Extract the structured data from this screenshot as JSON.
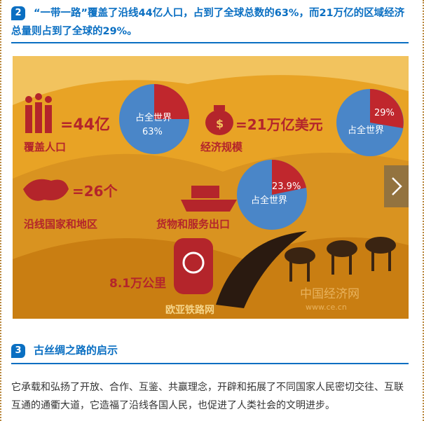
{
  "section2": {
    "number": "2",
    "title": "“一带一路”覆盖了沿线44亿人口，占到了全球总数的63%，而21万亿的区域经济总量则占到了全球的29%。"
  },
  "infographic": {
    "population": {
      "value": "=44亿",
      "label": "覆盖人口",
      "pie_label": "占全世界",
      "pie_value": "63%",
      "share": 63
    },
    "economy": {
      "value": "=21万亿美元",
      "label": "经济规模",
      "pie_label": "占全世界",
      "pie_value": "29%",
      "share": 29
    },
    "countries": {
      "value": "=26个",
      "label": "沿线国家和地区"
    },
    "exports": {
      "label": "货物和服务出口",
      "pie_label": "占全世界",
      "pie_value": "23.9%",
      "share": 23.9
    },
    "railway": {
      "value": "8.1万公里",
      "label": "欧亚铁路网"
    },
    "watermark": {
      "logo": "中国经济网",
      "url": "www.ce.cn"
    },
    "colors": {
      "background": "#e8a325",
      "red": "#c0272d",
      "blue": "#4a86c8",
      "dune": "#c97e12"
    }
  },
  "section3": {
    "number": "3",
    "title": "古丝绸之路的启示"
  },
  "paragraph": "它承载和弘扬了开放、合作、互鉴、共赢理念，开辟和拓展了不同国家人民密切交往、互联互通的通衢大道，它造福了沿线各国人民，也促进了人类社会的文明进步。"
}
